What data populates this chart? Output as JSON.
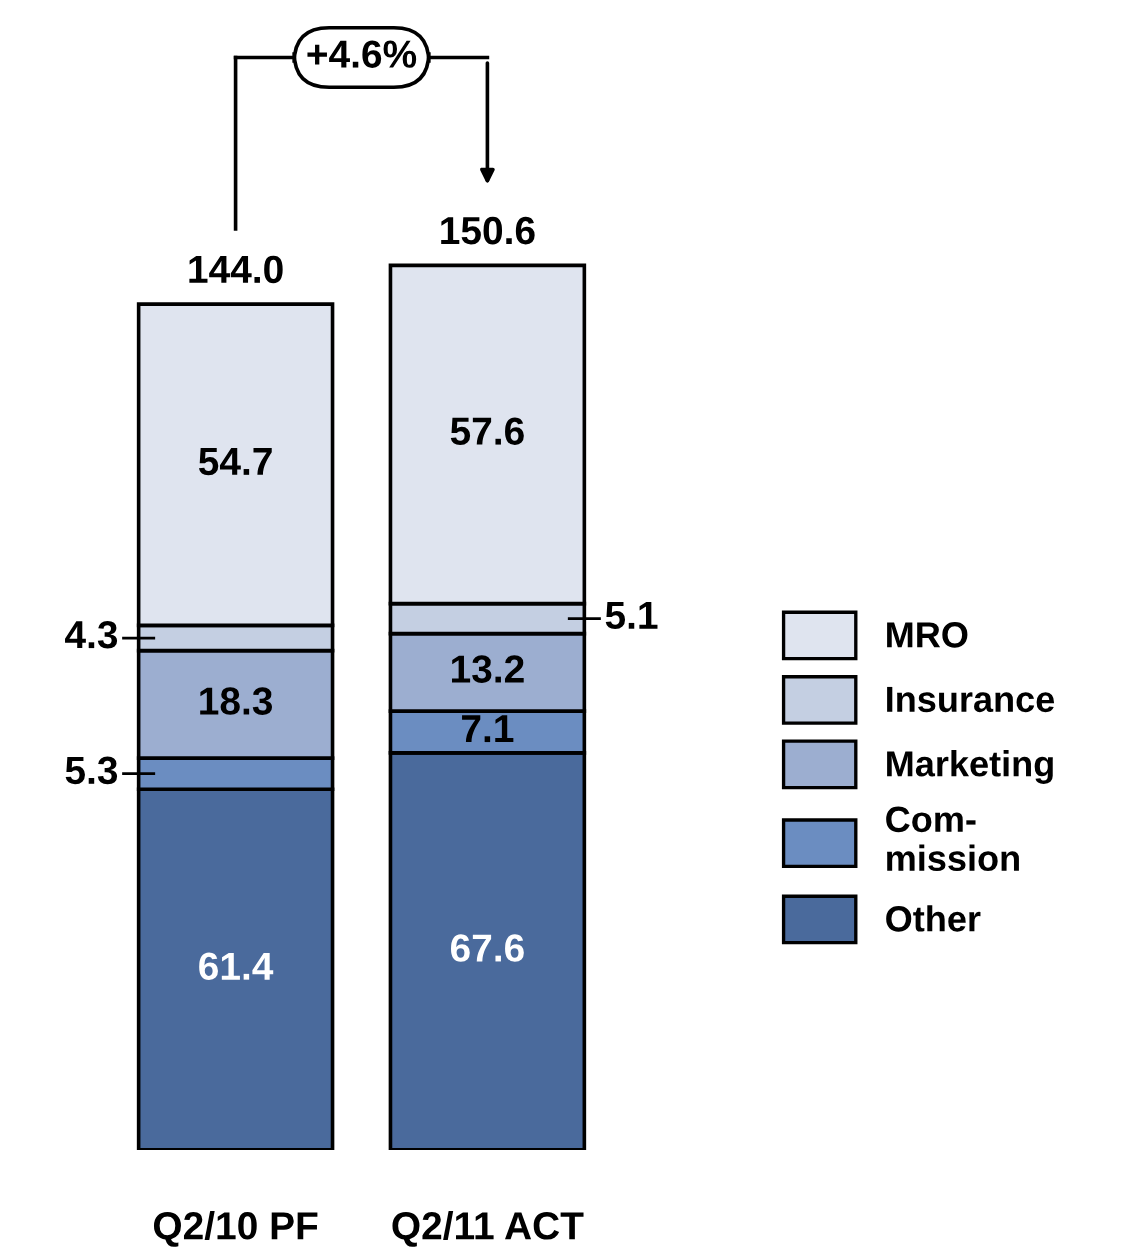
{
  "chart_data": {
    "type": "bar",
    "stacked": true,
    "data_labels": true,
    "legend": "right",
    "categories": [
      "Q2/10 PF",
      "Q2/11 ACT"
    ],
    "series": [
      {
        "name": "Other",
        "color": "#4a6a9c",
        "values": [
          61.4,
          67.6
        ]
      },
      {
        "name": "Com-\nmission",
        "color": "#6b8dc1",
        "values": [
          5.3,
          7.1
        ]
      },
      {
        "name": "Marketing",
        "color": "#9caed0",
        "values": [
          18.3,
          13.2
        ]
      },
      {
        "name": "Insurance",
        "color": "#c4cfe2",
        "values": [
          4.3,
          5.1
        ]
      },
      {
        "name": "MRO",
        "color": "#dfe4ef",
        "values": [
          54.7,
          57.6
        ]
      }
    ],
    "totals": [
      "144.0",
      "150.6"
    ],
    "annotations": [
      "+4.6%"
    ]
  }
}
